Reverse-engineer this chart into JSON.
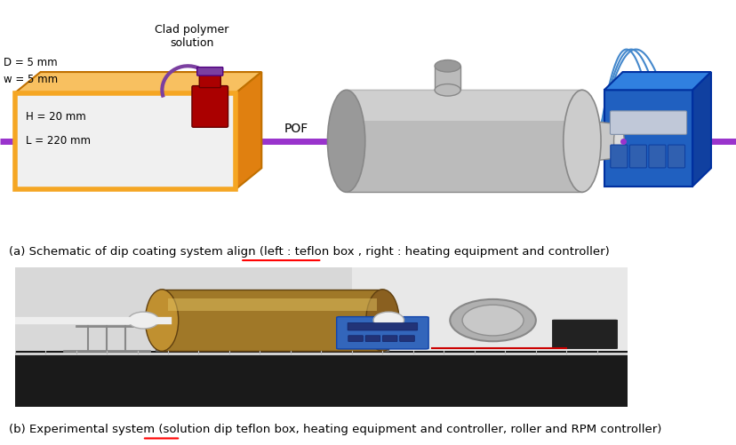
{
  "caption_a": "(a) Schematic of dip coating system align (left : teflon box , right : heating equipment and controller)",
  "caption_b": "(b) Experimental system (solution dip teflon box, heating equipment and controller, roller and RPM controller)",
  "bg_color": "#ffffff",
  "fig_width": 8.29,
  "fig_height": 5.01,
  "dpi": 100,
  "label_D": "D = 5 mm",
  "label_w": "w = 5 mm",
  "label_H": "H = 20 mm",
  "label_L": "L = 220 mm",
  "label_POF": "POF",
  "label_solution": "Clad polymer\nsolution",
  "box_face": "#F5A623",
  "box_top": "#F8C060",
  "box_right": "#E08010",
  "box_edge": "#C07000",
  "fiber_color": "#9933CC",
  "cyl_body": "#BBBBBB",
  "cyl_dark": "#999999",
  "cyl_light": "#DDDDDD",
  "ctrl_front": "#2060C0",
  "ctrl_top": "#3080E0",
  "ctrl_right": "#1040A0",
  "ctrl_edge": "#0030A0",
  "wire_color": "#4488CC",
  "bottle_body": "#AA0000",
  "bottle_cap": "#7B3FA0",
  "arc_color": "#7B3FA0",
  "photo_dark": "#1a1a1a",
  "photo_light": "#cccccc"
}
